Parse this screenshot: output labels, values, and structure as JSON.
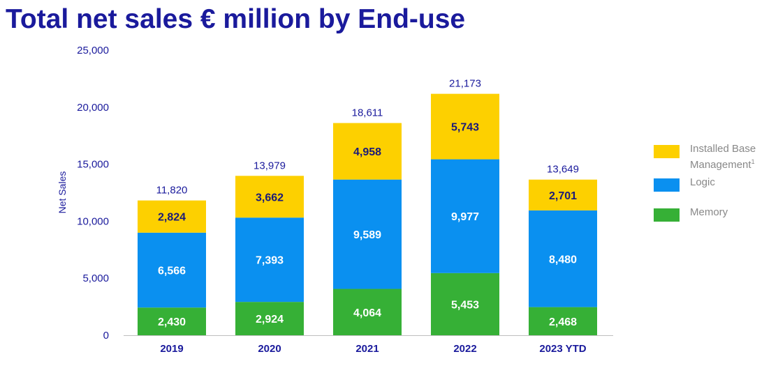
{
  "title": "Total net sales € million by End-use",
  "chart_data": {
    "type": "bar",
    "stacked": true,
    "title": "Total net sales € million by End-use",
    "ylabel": "Net Sales",
    "xlabel": "",
    "ylim": [
      0,
      25000
    ],
    "yticks": [
      0,
      5000,
      10000,
      15000,
      20000,
      25000
    ],
    "ytick_labels": [
      "0",
      "5,000",
      "10,000",
      "15,000",
      "20,000",
      "25,000"
    ],
    "categories": [
      "2019",
      "2020",
      "2021",
      "2022",
      "2023 YTD"
    ],
    "series": [
      {
        "name": "Memory",
        "color": "#36b036",
        "values": [
          2430,
          2924,
          4064,
          5453,
          2468
        ],
        "labels": [
          "2,430",
          "2,924",
          "4,064",
          "5,453",
          "2,468"
        ]
      },
      {
        "name": "Logic",
        "color": "#0a90f0",
        "values": [
          6566,
          7393,
          9589,
          9977,
          8480
        ],
        "labels": [
          "6,566",
          "7,393",
          "9,589",
          "9,977",
          "8,480"
        ]
      },
      {
        "name": "Installed Base Management",
        "superscript": "1",
        "color": "#fdd000",
        "values": [
          2824,
          3662,
          4958,
          5743,
          2701
        ],
        "labels": [
          "2,824",
          "3,662",
          "4,958",
          "5,743",
          "2,701"
        ]
      }
    ],
    "totals": [
      11820,
      13979,
      18611,
      21173,
      13649
    ],
    "total_labels": [
      "11,820",
      "13,979",
      "18,611",
      "21,173",
      "13,649"
    ],
    "legend_position": "right",
    "grid": false
  },
  "legend": [
    {
      "name": "Installed Base",
      "name_line2": "Management",
      "superscript": "1",
      "color": "#fdd000"
    },
    {
      "name": "Logic",
      "color": "#0a90f0"
    },
    {
      "name": "Memory",
      "color": "#36b036"
    }
  ]
}
